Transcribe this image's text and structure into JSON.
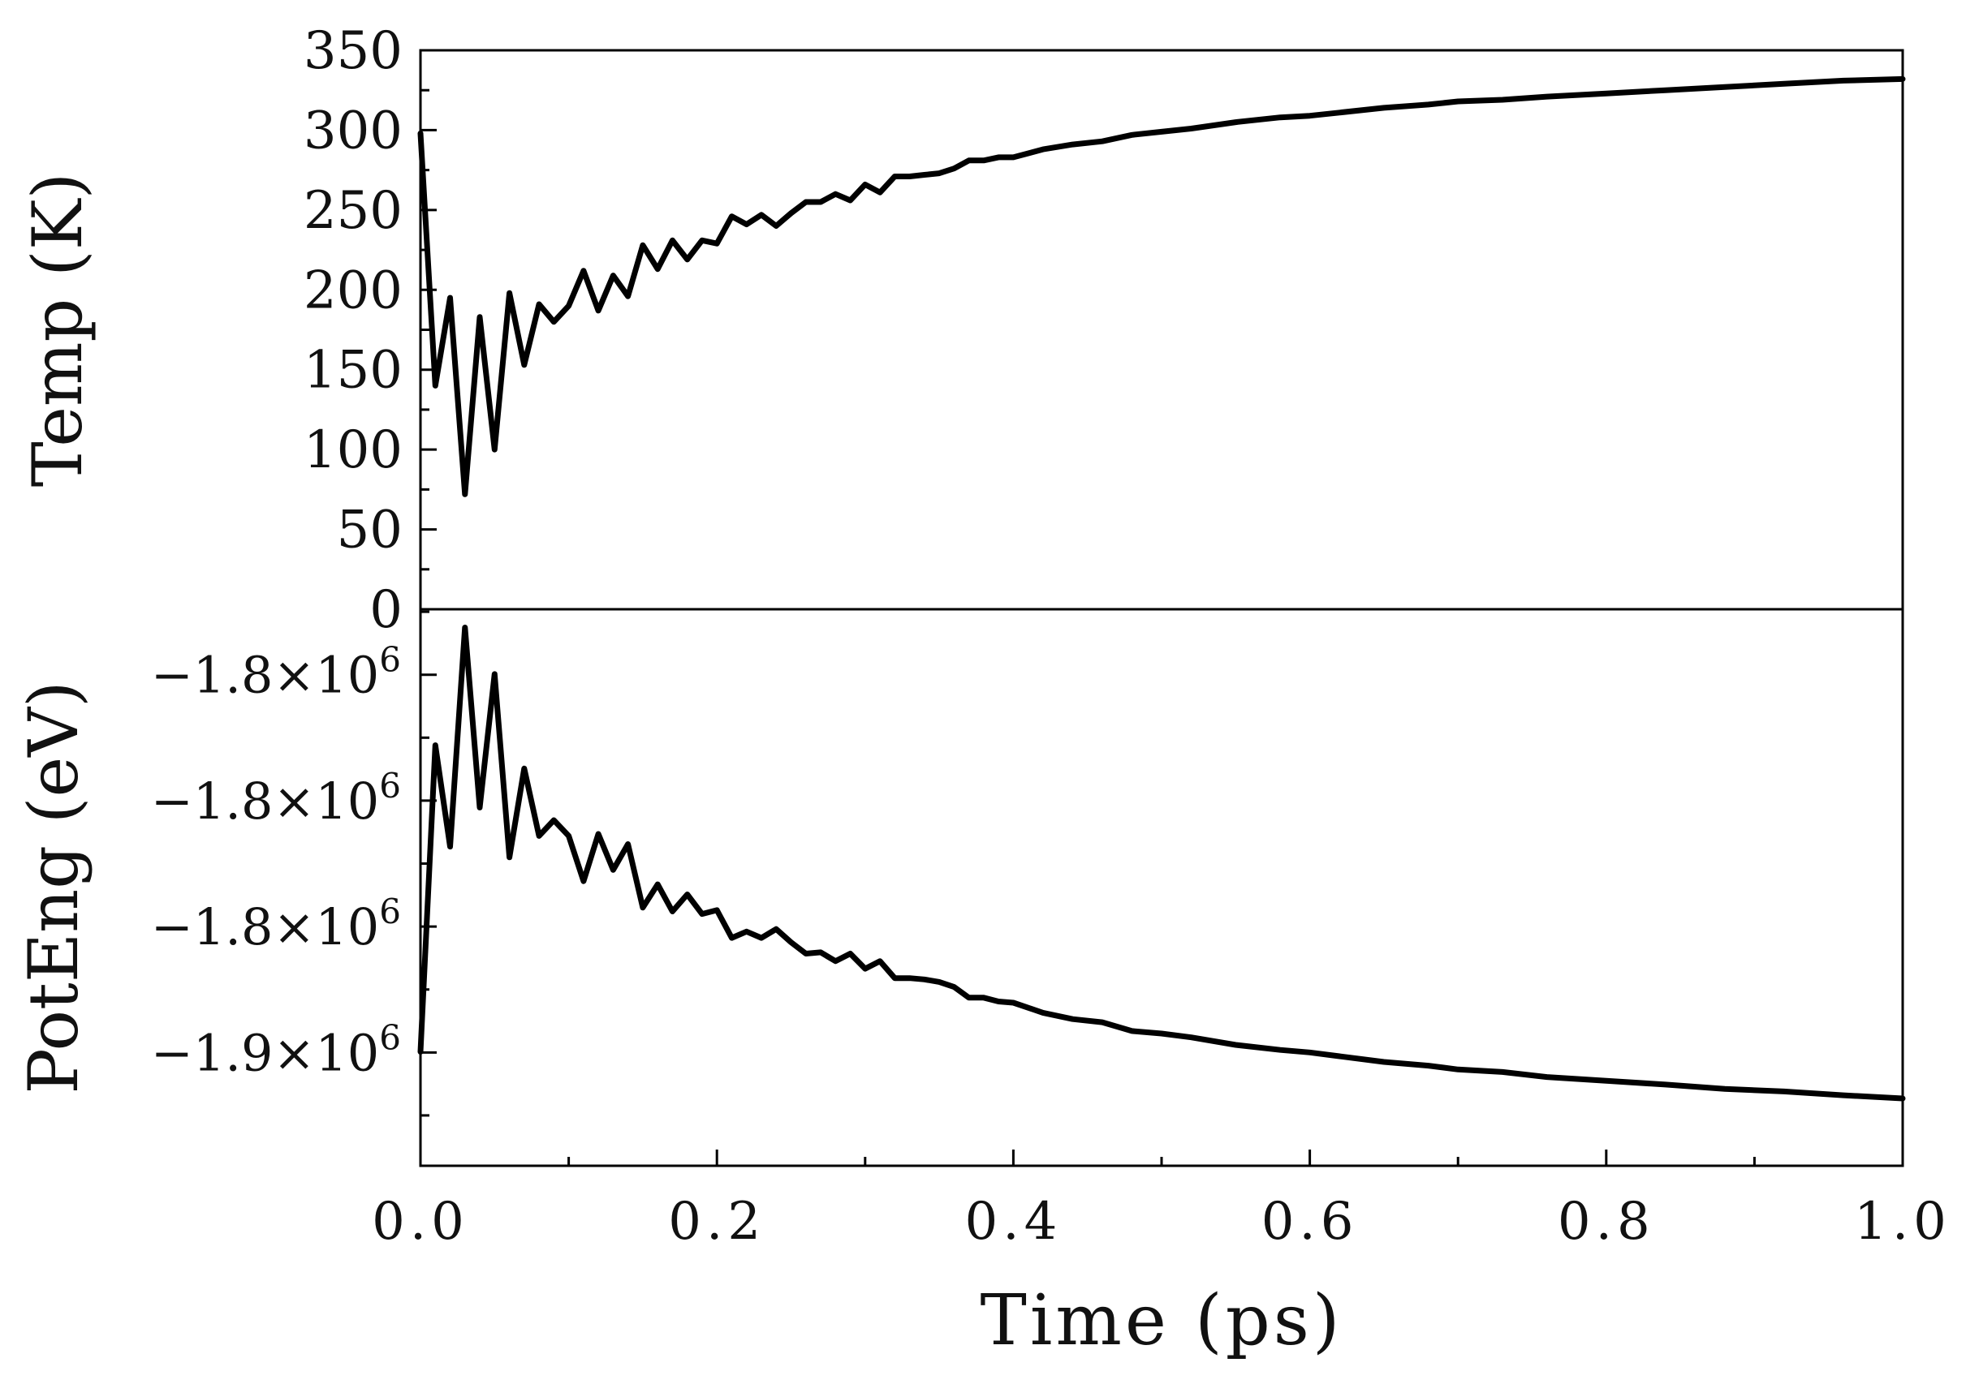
{
  "chart_data": [
    {
      "type": "line",
      "ylabel": "Temp (K)",
      "xlim": [
        0.0,
        1.0
      ],
      "ylim": [
        0,
        350
      ],
      "yticks": [
        0,
        50,
        100,
        150,
        200,
        250,
        300,
        350
      ],
      "ytick_labels": [
        "0",
        "50",
        "100",
        "150",
        "200",
        "250",
        "300",
        "350"
      ],
      "grid": false,
      "line_color": "#000000",
      "series": [
        {
          "x": [
            0.0,
            0.01,
            0.02,
            0.03,
            0.04,
            0.05,
            0.06,
            0.07,
            0.08,
            0.09,
            0.1,
            0.11,
            0.12,
            0.13,
            0.14,
            0.15,
            0.16,
            0.17,
            0.18,
            0.19,
            0.2,
            0.21,
            0.22,
            0.23,
            0.24,
            0.25,
            0.26,
            0.27,
            0.28,
            0.29,
            0.3,
            0.31,
            0.32,
            0.33,
            0.34,
            0.35,
            0.36,
            0.37,
            0.38,
            0.39,
            0.4,
            0.42,
            0.44,
            0.46,
            0.48,
            0.5,
            0.52,
            0.55,
            0.58,
            0.6,
            0.62,
            0.65,
            0.68,
            0.7,
            0.73,
            0.76,
            0.8,
            0.84,
            0.88,
            0.92,
            0.96,
            1.0
          ],
          "y": [
            298,
            140,
            195,
            72,
            183,
            100,
            198,
            153,
            191,
            180,
            190,
            212,
            187,
            209,
            196,
            228,
            213,
            231,
            219,
            231,
            229,
            246,
            241,
            247,
            240,
            248,
            255,
            255,
            260,
            256,
            266,
            261,
            271,
            271,
            272,
            273,
            276,
            281,
            281,
            283,
            283,
            288,
            291,
            293,
            297,
            299,
            301,
            305,
            308,
            309,
            311,
            314,
            316,
            318,
            319,
            321,
            323,
            325,
            327,
            329,
            331,
            332
          ]
        }
      ]
    },
    {
      "type": "line",
      "xlabel": "Time (ps)",
      "ylabel": "PotEng (eV)",
      "xlim": [
        0.0,
        1.0
      ],
      "ylim": [
        -1.878,
        -1.7896
      ],
      "yticks": [
        -1.8,
        -1.82,
        -1.84,
        -1.86
      ],
      "ytick_labels": [
        "−1.8×10",
        "−1.8×10",
        "−1.8×10",
        "−1.9×10"
      ],
      "ytick_exponent": "6",
      "y_units_note": "values ×10^6 eV",
      "xticks": [
        0.0,
        0.2,
        0.4,
        0.6,
        0.8,
        1.0
      ],
      "xtick_labels": [
        "0.0",
        "0.2",
        "0.4",
        "0.6",
        "0.8",
        "1.0"
      ],
      "grid": false,
      "line_color": "#000000",
      "series": [
        {
          "x": [
            0.0,
            0.01,
            0.02,
            0.03,
            0.04,
            0.05,
            0.06,
            0.07,
            0.08,
            0.09,
            0.1,
            0.11,
            0.12,
            0.13,
            0.14,
            0.15,
            0.16,
            0.17,
            0.18,
            0.19,
            0.2,
            0.21,
            0.22,
            0.23,
            0.24,
            0.25,
            0.26,
            0.27,
            0.28,
            0.29,
            0.3,
            0.31,
            0.32,
            0.33,
            0.34,
            0.35,
            0.36,
            0.37,
            0.38,
            0.39,
            0.4,
            0.42,
            0.44,
            0.46,
            0.48,
            0.5,
            0.52,
            0.55,
            0.58,
            0.6,
            0.62,
            0.65,
            0.68,
            0.7,
            0.73,
            0.76,
            0.8,
            0.84,
            0.88,
            0.92,
            0.96,
            1.0
          ],
          "y": [
            -1.8599,
            -1.8112,
            -1.8273,
            -1.7925,
            -1.8211,
            -1.7999,
            -1.829,
            -1.8149,
            -1.8256,
            -1.8231,
            -1.8256,
            -1.8328,
            -1.8253,
            -1.831,
            -1.8269,
            -1.837,
            -1.8333,
            -1.8376,
            -1.8349,
            -1.838,
            -1.8374,
            -1.8418,
            -1.8408,
            -1.8418,
            -1.8404,
            -1.8425,
            -1.8443,
            -1.8441,
            -1.8455,
            -1.8443,
            -1.8467,
            -1.8455,
            -1.8482,
            -1.8482,
            -1.8484,
            -1.8488,
            -1.8496,
            -1.8513,
            -1.8513,
            -1.8519,
            -1.8521,
            -1.8537,
            -1.8547,
            -1.8552,
            -1.8566,
            -1.857,
            -1.8576,
            -1.8588,
            -1.8596,
            -1.86,
            -1.8606,
            -1.8615,
            -1.8621,
            -1.8627,
            -1.8631,
            -1.8639,
            -1.8645,
            -1.8651,
            -1.8658,
            -1.8662,
            -1.8668,
            -1.8673
          ]
        }
      ]
    }
  ]
}
